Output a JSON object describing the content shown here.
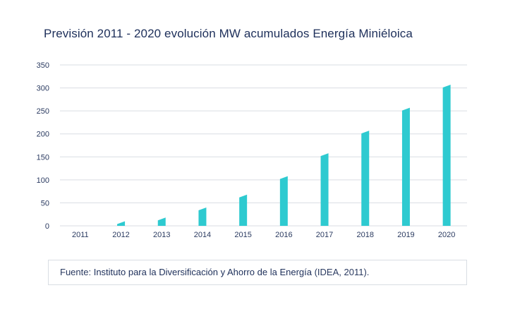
{
  "chart_data": {
    "type": "bar",
    "title": "Previsión 2011 - 2020 evolución MW acumulados Energía Miniéloica",
    "categories": [
      "2011",
      "2012",
      "2013",
      "2014",
      "2015",
      "2016",
      "2017",
      "2018",
      "2019",
      "2020"
    ],
    "values": [
      0,
      10,
      18,
      40,
      68,
      108,
      158,
      207,
      257,
      307
    ],
    "yticks": [
      0,
      50,
      100,
      150,
      200,
      250,
      300,
      350
    ],
    "ylim": [
      0,
      350
    ],
    "xlabel": "",
    "ylabel": "",
    "grid": true,
    "bar_color": "#2ecad0",
    "bar_dark_color": "#1f9fa5"
  },
  "source": {
    "prefix": "Fuente: ",
    "name": "Instituto para la Diversificación y Ahorro de la Energía",
    "suffix": " (IDEA, 2011)."
  }
}
